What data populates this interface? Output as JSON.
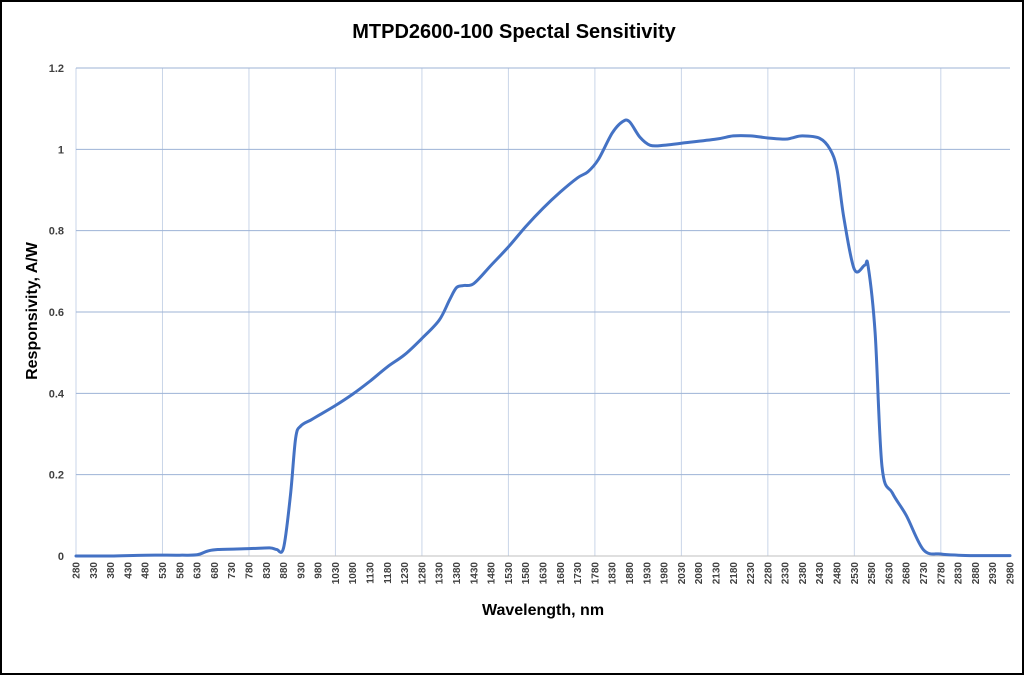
{
  "chart_data": {
    "type": "line",
    "title": "MTPD2600-100  Spectal Sensitivity",
    "xlabel": "Wavelength, nm",
    "ylabel": "Responsivity, A/W",
    "ylim": [
      0,
      1.2
    ],
    "yticks": [
      "0",
      "0.2",
      "0.4",
      "0.6",
      "0.8",
      "1",
      "1.2"
    ],
    "xlim": [
      280,
      2980
    ],
    "xticks": [
      "280",
      "330",
      "380",
      "430",
      "480",
      "530",
      "580",
      "630",
      "680",
      "730",
      "780",
      "830",
      "880",
      "930",
      "980",
      "1030",
      "1080",
      "1130",
      "1180",
      "1230",
      "1280",
      "1330",
      "1380",
      "1430",
      "1480",
      "1530",
      "1580",
      "1630",
      "1680",
      "1730",
      "1780",
      "1830",
      "1880",
      "1930",
      "1980",
      "2030",
      "2080",
      "2130",
      "2180",
      "2230",
      "2280",
      "2330",
      "2380",
      "2430",
      "2480",
      "2530",
      "2580",
      "2630",
      "2680",
      "2730",
      "2780",
      "2830",
      "2880",
      "2930",
      "2980"
    ],
    "grid": true,
    "line_color": "#4472c4",
    "grid_color": "#c9d5e8",
    "series": [
      {
        "name": "Responsivity",
        "x": [
          280,
          380,
          480,
          580,
          630,
          660,
          690,
          780,
          840,
          860,
          880,
          900,
          915,
          930,
          960,
          980,
          1030,
          1080,
          1130,
          1180,
          1230,
          1280,
          1330,
          1360,
          1380,
          1400,
          1430,
          1480,
          1530,
          1580,
          1630,
          1680,
          1730,
          1760,
          1790,
          1830,
          1860,
          1880,
          1910,
          1940,
          1980,
          2030,
          2130,
          2180,
          2230,
          2280,
          2330,
          2350,
          2380,
          2430,
          2460,
          2480,
          2500,
          2530,
          2560,
          2570,
          2590,
          2610,
          2640,
          2680,
          2730,
          2780,
          2830,
          2880,
          2930,
          2980
        ],
        "y": [
          0,
          0,
          0.002,
          0.002,
          0.003,
          0.012,
          0.016,
          0.018,
          0.02,
          0.016,
          0.02,
          0.15,
          0.29,
          0.32,
          0.335,
          0.345,
          0.37,
          0.398,
          0.43,
          0.465,
          0.495,
          0.535,
          0.58,
          0.63,
          0.66,
          0.665,
          0.67,
          0.715,
          0.76,
          0.81,
          0.855,
          0.895,
          0.93,
          0.945,
          0.975,
          1.04,
          1.068,
          1.068,
          1.03,
          1.01,
          1.01,
          1.015,
          1.025,
          1.033,
          1.033,
          1.028,
          1.025,
          1.028,
          1.033,
          1.027,
          1.0,
          0.95,
          0.83,
          0.705,
          0.715,
          0.712,
          0.55,
          0.22,
          0.155,
          0.1,
          0.015,
          0.005,
          0.002,
          0.001,
          0.001,
          0.001
        ]
      }
    ]
  }
}
